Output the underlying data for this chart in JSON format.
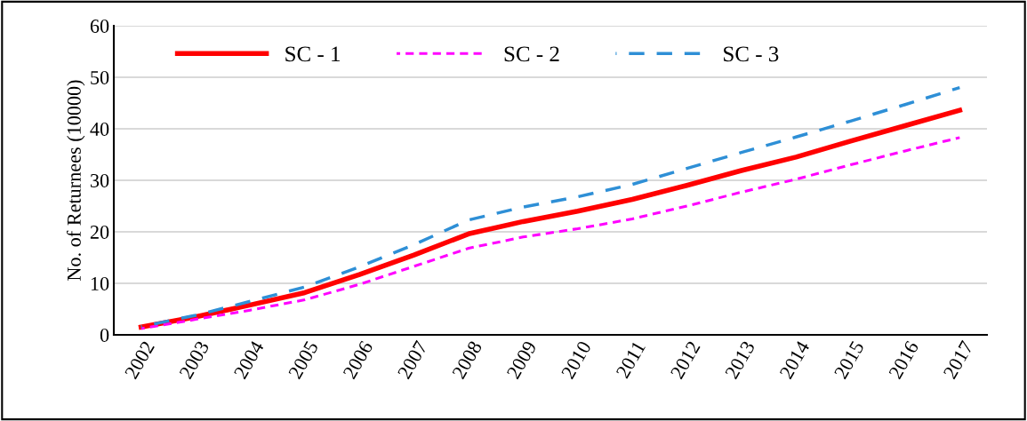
{
  "chart_data": {
    "type": "line",
    "ylabel": "No. of Returnees (10000)",
    "categories": [
      "2002",
      "2003",
      "2004",
      "2005",
      "2006",
      "2007",
      "2008",
      "2009",
      "2010",
      "2011",
      "2012",
      "2013",
      "2014",
      "2015",
      "2016",
      "2017"
    ],
    "ylim": [
      0,
      60
    ],
    "yticks": [
      0,
      10,
      20,
      30,
      40,
      50,
      60
    ],
    "grid": "y",
    "legend": "top left",
    "series": [
      {
        "name": "SC - 1",
        "color": "#ff0000",
        "line_style": "solid",
        "values": [
          1.5,
          3.5,
          5.8,
          8.2,
          11.7,
          15.5,
          19.6,
          22.0,
          24.0,
          26.3,
          29.0,
          31.9,
          34.5,
          37.6,
          40.6,
          43.6
        ]
      },
      {
        "name": "SC - 2",
        "color": "#ff00ff",
        "line_style": "dotted",
        "values": [
          1.2,
          3.0,
          4.8,
          6.8,
          9.8,
          13.3,
          16.8,
          19.0,
          20.6,
          22.5,
          25.0,
          27.7,
          30.2,
          33.0,
          35.7,
          38.3
        ]
      },
      {
        "name": "SC - 3",
        "color": "#2e8fd6",
        "line_style": "dashed",
        "values": [
          1.6,
          3.8,
          6.5,
          9.3,
          13.2,
          17.5,
          22.3,
          24.8,
          26.8,
          29.2,
          32.3,
          35.4,
          38.4,
          41.5,
          44.7,
          48.0
        ]
      }
    ]
  }
}
